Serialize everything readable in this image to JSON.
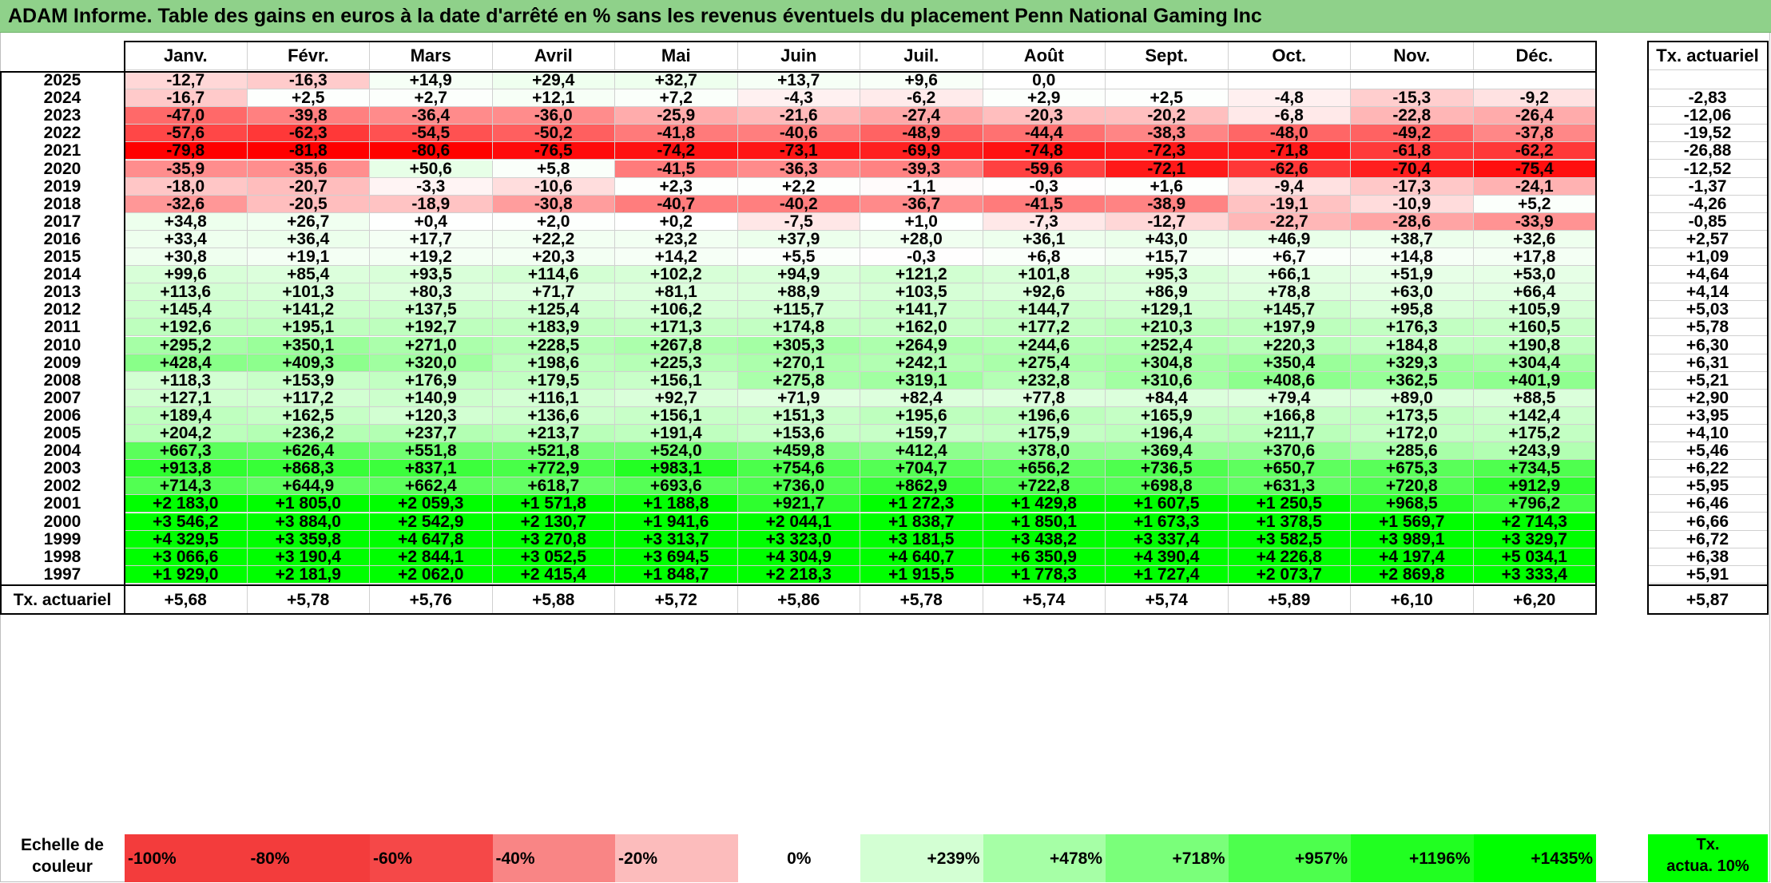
{
  "title": "ADAM Informe. Table des gains en euros à la date d'arrêté en % sans les revenus éventuels du placement Penn National Gaming Inc",
  "chart_data": {
    "type": "heatmap",
    "title": "ADAM Informe. Table des gains en euros à la date d'arrêté en % sans les revenus éventuels du placement Penn National Gaming Inc",
    "months": [
      "Janv.",
      "Févr.",
      "Mars",
      "Avril",
      "Mai",
      "Juin",
      "Juil.",
      "Août",
      "Sept.",
      "Oct.",
      "Nov.",
      "Déc."
    ],
    "rate_header": "Tx. actuariel",
    "rows": [
      {
        "year": "2025",
        "values": [
          "-12,7",
          "-16,3",
          "+14,9",
          "+29,4",
          "+32,7",
          "+13,7",
          "+9,6",
          "0,0",
          "",
          "",
          "",
          ""
        ],
        "rate": ""
      },
      {
        "year": "2024",
        "values": [
          "-16,7",
          "+2,5",
          "+2,7",
          "+12,1",
          "+7,2",
          "-4,3",
          "-6,2",
          "+2,9",
          "+2,5",
          "-4,8",
          "-15,3",
          "-9,2"
        ],
        "rate": "-2,83"
      },
      {
        "year": "2023",
        "values": [
          "-47,0",
          "-39,8",
          "-36,4",
          "-36,0",
          "-25,9",
          "-21,6",
          "-27,4",
          "-20,3",
          "-20,2",
          "-6,8",
          "-22,8",
          "-26,4"
        ],
        "rate": "-12,06"
      },
      {
        "year": "2022",
        "values": [
          "-57,6",
          "-62,3",
          "-54,5",
          "-50,2",
          "-41,8",
          "-40,6",
          "-48,9",
          "-44,4",
          "-38,3",
          "-48,0",
          "-49,2",
          "-37,8"
        ],
        "rate": "-19,52"
      },
      {
        "year": "2021",
        "values": [
          "-79,8",
          "-81,8",
          "-80,6",
          "-76,5",
          "-74,2",
          "-73,1",
          "-69,9",
          "-74,8",
          "-72,3",
          "-71,8",
          "-61,8",
          "-62,2"
        ],
        "rate": "-26,88"
      },
      {
        "year": "2020",
        "values": [
          "-35,9",
          "-35,6",
          "+50,6",
          "+5,8",
          "-41,5",
          "-36,3",
          "-39,3",
          "-59,6",
          "-72,1",
          "-62,6",
          "-70,4",
          "-75,4"
        ],
        "rate": "-12,52"
      },
      {
        "year": "2019",
        "values": [
          "-18,0",
          "-20,7",
          "-3,3",
          "-10,6",
          "+2,3",
          "+2,2",
          "-1,1",
          "-0,3",
          "+1,6",
          "-9,4",
          "-17,3",
          "-24,1"
        ],
        "rate": "-1,37"
      },
      {
        "year": "2018",
        "values": [
          "-32,6",
          "-20,5",
          "-18,9",
          "-30,8",
          "-40,7",
          "-40,2",
          "-36,7",
          "-41,5",
          "-38,9",
          "-19,1",
          "-10,9",
          "+5,2"
        ],
        "rate": "-4,26"
      },
      {
        "year": "2017",
        "values": [
          "+34,8",
          "+26,7",
          "+0,4",
          "+2,0",
          "+0,2",
          "-7,5",
          "+1,0",
          "-7,3",
          "-12,7",
          "-22,7",
          "-28,6",
          "-33,9"
        ],
        "rate": "-0,85"
      },
      {
        "year": "2016",
        "values": [
          "+33,4",
          "+36,4",
          "+17,7",
          "+22,2",
          "+23,2",
          "+37,9",
          "+28,0",
          "+36,1",
          "+43,0",
          "+46,9",
          "+38,7",
          "+32,6"
        ],
        "rate": "+2,57"
      },
      {
        "year": "2015",
        "values": [
          "+30,8",
          "+19,1",
          "+19,2",
          "+20,3",
          "+14,2",
          "+5,5",
          "-0,3",
          "+6,8",
          "+15,7",
          "+6,7",
          "+14,8",
          "+17,8"
        ],
        "rate": "+1,09"
      },
      {
        "year": "2014",
        "values": [
          "+99,6",
          "+85,4",
          "+93,5",
          "+114,6",
          "+102,2",
          "+94,9",
          "+121,2",
          "+101,8",
          "+95,3",
          "+66,1",
          "+51,9",
          "+53,0"
        ],
        "rate": "+4,64"
      },
      {
        "year": "2013",
        "values": [
          "+113,6",
          "+101,3",
          "+80,3",
          "+71,7",
          "+81,1",
          "+88,9",
          "+103,5",
          "+92,6",
          "+86,9",
          "+78,8",
          "+63,0",
          "+66,4"
        ],
        "rate": "+4,14"
      },
      {
        "year": "2012",
        "values": [
          "+145,4",
          "+141,2",
          "+137,5",
          "+125,4",
          "+106,2",
          "+115,7",
          "+141,7",
          "+144,7",
          "+129,1",
          "+145,7",
          "+95,8",
          "+105,9"
        ],
        "rate": "+5,03"
      },
      {
        "year": "2011",
        "values": [
          "+192,6",
          "+195,1",
          "+192,7",
          "+183,9",
          "+171,3",
          "+174,8",
          "+162,0",
          "+177,2",
          "+210,3",
          "+197,9",
          "+176,3",
          "+160,5"
        ],
        "rate": "+5,78"
      },
      {
        "year": "2010",
        "values": [
          "+295,2",
          "+350,1",
          "+271,0",
          "+228,5",
          "+267,8",
          "+305,3",
          "+264,9",
          "+244,6",
          "+252,4",
          "+220,3",
          "+184,8",
          "+190,8"
        ],
        "rate": "+6,30"
      },
      {
        "year": "2009",
        "values": [
          "+428,4",
          "+409,3",
          "+320,0",
          "+198,6",
          "+225,3",
          "+270,1",
          "+242,1",
          "+275,4",
          "+304,8",
          "+350,4",
          "+329,3",
          "+304,4"
        ],
        "rate": "+6,31"
      },
      {
        "year": "2008",
        "values": [
          "+118,3",
          "+153,9",
          "+176,9",
          "+179,5",
          "+156,1",
          "+275,8",
          "+319,1",
          "+232,8",
          "+310,6",
          "+408,6",
          "+362,5",
          "+401,9"
        ],
        "rate": "+5,21"
      },
      {
        "year": "2007",
        "values": [
          "+127,1",
          "+117,2",
          "+140,9",
          "+116,1",
          "+92,7",
          "+71,9",
          "+82,4",
          "+77,8",
          "+84,4",
          "+79,4",
          "+89,0",
          "+88,5"
        ],
        "rate": "+2,90"
      },
      {
        "year": "2006",
        "values": [
          "+189,4",
          "+162,5",
          "+120,3",
          "+136,6",
          "+156,1",
          "+151,3",
          "+195,6",
          "+196,6",
          "+165,9",
          "+166,8",
          "+173,5",
          "+142,4"
        ],
        "rate": "+3,95"
      },
      {
        "year": "2005",
        "values": [
          "+204,2",
          "+236,2",
          "+237,7",
          "+213,7",
          "+191,4",
          "+153,6",
          "+159,7",
          "+175,9",
          "+196,4",
          "+211,7",
          "+172,0",
          "+175,2"
        ],
        "rate": "+4,10"
      },
      {
        "year": "2004",
        "values": [
          "+667,3",
          "+626,4",
          "+551,8",
          "+521,8",
          "+524,0",
          "+459,8",
          "+412,4",
          "+378,0",
          "+369,4",
          "+370,6",
          "+285,6",
          "+243,9"
        ],
        "rate": "+5,46"
      },
      {
        "year": "2003",
        "values": [
          "+913,8",
          "+868,3",
          "+837,1",
          "+772,9",
          "+983,1",
          "+754,6",
          "+704,7",
          "+656,2",
          "+736,5",
          "+650,7",
          "+675,3",
          "+734,5"
        ],
        "rate": "+6,22"
      },
      {
        "year": "2002",
        "values": [
          "+714,3",
          "+644,9",
          "+662,4",
          "+618,7",
          "+693,6",
          "+736,0",
          "+862,9",
          "+722,8",
          "+698,8",
          "+631,3",
          "+720,8",
          "+912,9"
        ],
        "rate": "+5,95"
      },
      {
        "year": "2001",
        "values": [
          "+2 183,0",
          "+1 805,0",
          "+2 059,3",
          "+1 571,8",
          "+1 188,8",
          "+921,7",
          "+1 272,3",
          "+1 429,8",
          "+1 607,5",
          "+1 250,5",
          "+968,5",
          "+796,2"
        ],
        "rate": "+6,46"
      },
      {
        "year": "2000",
        "values": [
          "+3 546,2",
          "+3 884,0",
          "+2 542,9",
          "+2 130,7",
          "+1 941,6",
          "+2 044,1",
          "+1 838,7",
          "+1 850,1",
          "+1 673,3",
          "+1 378,5",
          "+1 569,7",
          "+2 714,3"
        ],
        "rate": "+6,66"
      },
      {
        "year": "1999",
        "values": [
          "+4 329,5",
          "+3 359,8",
          "+4 647,8",
          "+3 270,8",
          "+3 313,7",
          "+3 323,0",
          "+3 181,5",
          "+3 438,2",
          "+3 337,4",
          "+3 582,5",
          "+3 989,1",
          "+3 329,7"
        ],
        "rate": "+6,72"
      },
      {
        "year": "1998",
        "values": [
          "+3 066,6",
          "+3 190,4",
          "+2 844,1",
          "+3 052,5",
          "+3 694,5",
          "+4 304,9",
          "+4 640,7",
          "+6 350,9",
          "+4 390,4",
          "+4 226,8",
          "+4 197,4",
          "+5 034,1"
        ],
        "rate": "+6,38"
      },
      {
        "year": "1997",
        "values": [
          "+1 929,0",
          "+2 181,9",
          "+2 062,0",
          "+2 415,4",
          "+1 848,7",
          "+2 218,3",
          "+1 915,5",
          "+1 778,3",
          "+1 727,4",
          "+2 073,7",
          "+2 869,8",
          "+3 333,4"
        ],
        "rate": "+5,91"
      }
    ],
    "footer": {
      "label": "Tx. actuariel",
      "values": [
        "+5,68",
        "+5,78",
        "+5,76",
        "+5,88",
        "+5,72",
        "+5,86",
        "+5,78",
        "+5,74",
        "+5,74",
        "+5,89",
        "+6,10",
        "+6,20"
      ],
      "rate": "+5,87"
    },
    "legend": {
      "label_line1": "Echelle de",
      "label_line2": "couleur",
      "items": [
        {
          "text": "-100%",
          "color": "#f33c3c",
          "align": "left"
        },
        {
          "text": "-80%",
          "color": "#f33c3c",
          "align": "left"
        },
        {
          "text": "-60%",
          "color": "#f54848",
          "align": "left"
        },
        {
          "text": "-40%",
          "color": "#f98585",
          "align": "left"
        },
        {
          "text": "-20%",
          "color": "#fcbcbc",
          "align": "left"
        },
        {
          "text": "0%",
          "color": "#ffffff",
          "align": "center"
        },
        {
          "text": "+239%",
          "color": "#d3ffd3",
          "align": "right"
        },
        {
          "text": "+478%",
          "color": "#a6ffa6",
          "align": "right"
        },
        {
          "text": "+718%",
          "color": "#7aff7a",
          "align": "right"
        },
        {
          "text": "+957%",
          "color": "#4dff4d",
          "align": "right"
        },
        {
          "text": "+1196%",
          "color": "#21ff21",
          "align": "right"
        },
        {
          "text": "+1435%",
          "color": "#00ff00",
          "align": "right"
        }
      ],
      "tx_line1": "Tx.",
      "tx_line2": "actua. 10%",
      "tx_color": "#00ff00"
    },
    "colors": {
      "negative_max": "#ff0000",
      "neutral": "#ffffff",
      "positive_max": "#00ff00"
    }
  }
}
